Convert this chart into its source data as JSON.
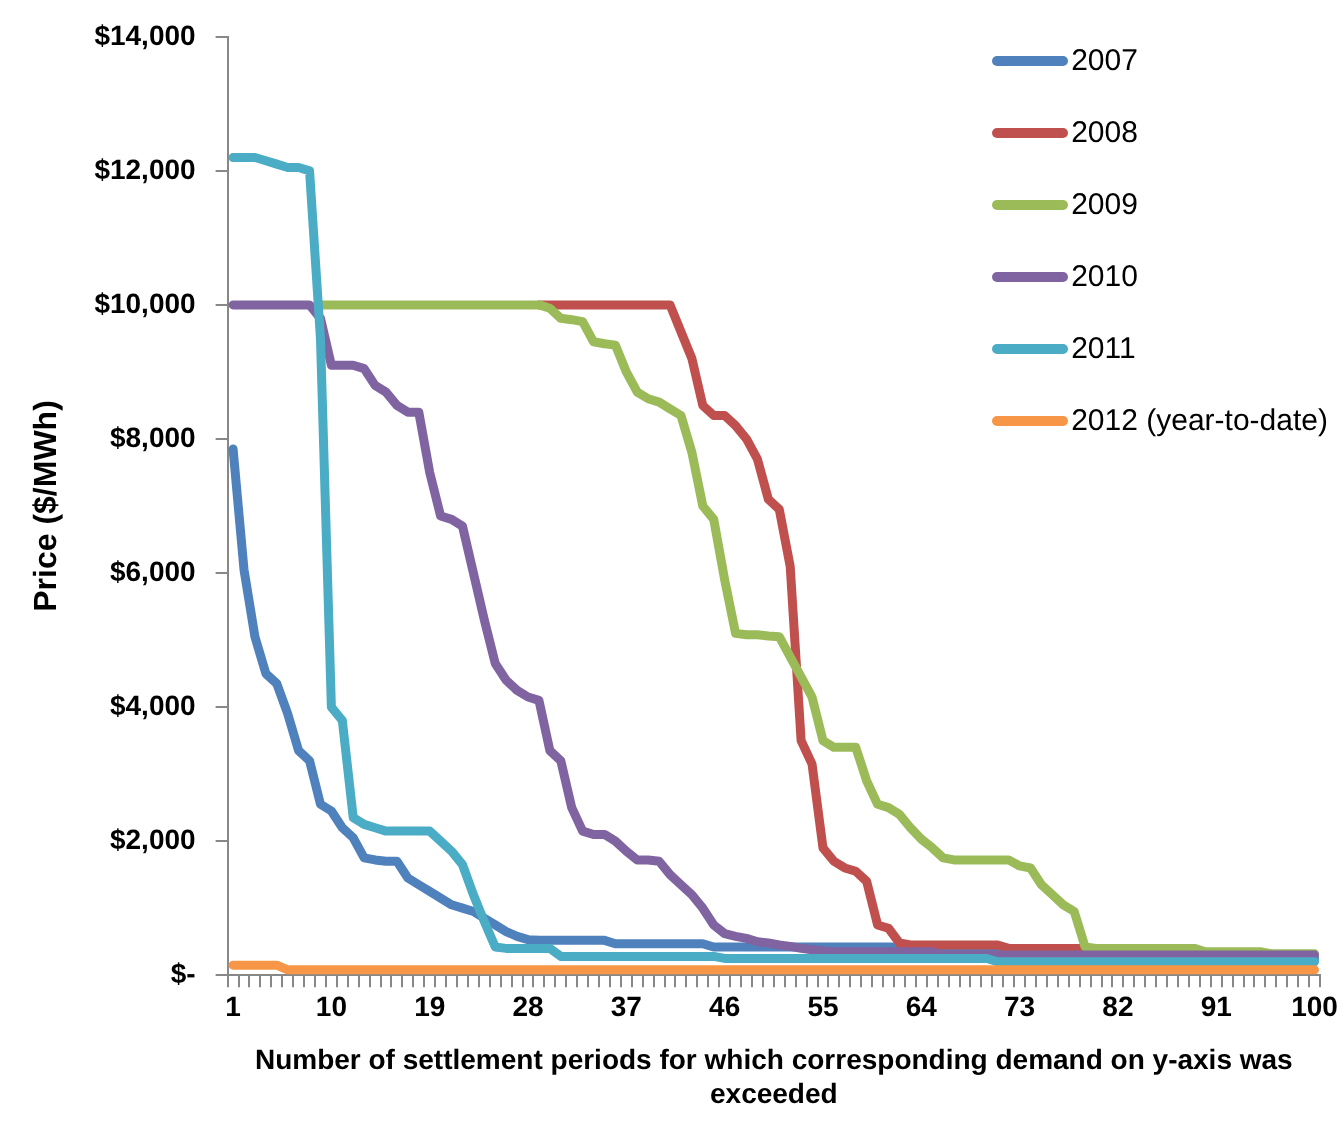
{
  "chart_data": {
    "type": "line",
    "xlabel": "Number of settlement periods for which corresponding demand on y-axis was exceeded",
    "ylabel": "Price ($/MWh)",
    "categories": [
      "1",
      null,
      null,
      null,
      null,
      null,
      null,
      null,
      null,
      "10",
      null,
      null,
      null,
      null,
      null,
      null,
      null,
      null,
      "19",
      null,
      null,
      null,
      null,
      null,
      null,
      null,
      null,
      "28",
      null,
      null,
      null,
      null,
      null,
      null,
      null,
      null,
      "37",
      null,
      null,
      null,
      null,
      null,
      null,
      null,
      null,
      "46",
      null,
      null,
      null,
      null,
      null,
      null,
      null,
      null,
      "55",
      null,
      null,
      null,
      null,
      null,
      null,
      null,
      null,
      "64",
      null,
      null,
      null,
      null,
      null,
      null,
      null,
      null,
      "73",
      null,
      null,
      null,
      null,
      null,
      null,
      null,
      null,
      "82",
      null,
      null,
      null,
      null,
      null,
      null,
      null,
      null,
      "91",
      null,
      null,
      null,
      null,
      null,
      null,
      null,
      null,
      "100"
    ],
    "ylim": [
      0,
      14000
    ],
    "yticks": [
      {
        "value": 0,
        "label": "$-"
      },
      {
        "value": 2000,
        "label": "$2,000"
      },
      {
        "value": 4000,
        "label": "$4,000"
      },
      {
        "value": 6000,
        "label": "$6,000"
      },
      {
        "value": 8000,
        "label": "$8,000"
      },
      {
        "value": 10000,
        "label": "$10,000"
      },
      {
        "value": 12000,
        "label": "$12,000"
      },
      {
        "value": 14000,
        "label": "$14,000"
      }
    ],
    "grid": false,
    "legend": "top right",
    "marker": "none",
    "line_style": "solid",
    "series": [
      {
        "name": "2007",
        "color": "#4f81bd",
        "values": [
          7850,
          6050,
          5050,
          4500,
          4350,
          3900,
          3350,
          3200,
          2550,
          2450,
          2200,
          2050,
          1750,
          1720,
          1700,
          1700,
          1450,
          1350,
          1250,
          1150,
          1050,
          1000,
          950,
          850,
          750,
          650,
          580,
          530,
          520,
          520,
          520,
          520,
          520,
          520,
          520,
          470,
          470,
          470,
          470,
          470,
          470,
          470,
          470,
          470,
          420,
          420,
          420,
          420,
          420,
          420,
          420,
          420,
          420,
          420,
          420,
          420,
          420,
          420,
          420,
          420,
          420,
          420,
          420,
          420,
          420,
          380,
          380,
          380,
          380,
          380,
          380,
          380,
          380,
          380,
          380,
          380,
          380,
          380,
          380,
          380,
          380,
          380,
          380,
          380,
          380,
          250,
          250,
          250,
          250,
          250,
          250,
          250,
          250,
          250,
          250,
          250,
          250,
          250,
          250,
          250
        ]
      },
      {
        "name": "2008",
        "color": "#c0504d",
        "values": [
          null,
          null,
          null,
          null,
          null,
          null,
          null,
          null,
          null,
          null,
          null,
          null,
          null,
          null,
          null,
          null,
          null,
          null,
          null,
          null,
          null,
          null,
          null,
          null,
          null,
          null,
          null,
          null,
          10000,
          10000,
          10000,
          10000,
          10000,
          10000,
          10000,
          10000,
          10000,
          10000,
          10000,
          10000,
          10000,
          9600,
          9200,
          8500,
          8350,
          8350,
          8200,
          8000,
          7700,
          7100,
          6950,
          6100,
          3500,
          3150,
          1900,
          1700,
          1600,
          1550,
          1400,
          750,
          700,
          480,
          450,
          450,
          450,
          450,
          450,
          450,
          450,
          450,
          450,
          400,
          400,
          400,
          400,
          400,
          400,
          400,
          400,
          350,
          null,
          null,
          null,
          null,
          null,
          null,
          null,
          null,
          null,
          null,
          null,
          null,
          null,
          null,
          null,
          null,
          null,
          null,
          null,
          null
        ]
      },
      {
        "name": "2009",
        "color": "#9bbb59",
        "values": [
          null,
          null,
          null,
          null,
          null,
          null,
          null,
          null,
          10000,
          10000,
          10000,
          10000,
          10000,
          10000,
          10000,
          10000,
          10000,
          10000,
          10000,
          10000,
          10000,
          10000,
          10000,
          10000,
          10000,
          10000,
          10000,
          10000,
          10000,
          9950,
          9800,
          9780,
          9750,
          9450,
          9420,
          9400,
          9000,
          8700,
          8600,
          8550,
          8450,
          8350,
          7800,
          7000,
          6800,
          5900,
          5100,
          5080,
          5080,
          5060,
          5050,
          4750,
          4450,
          4150,
          3500,
          3400,
          3400,
          3400,
          2900,
          2550,
          2500,
          2400,
          2200,
          2030,
          1900,
          1750,
          1720,
          1720,
          1720,
          1720,
          1720,
          1720,
          1630,
          1600,
          1350,
          1200,
          1050,
          950,
          420,
          400,
          400,
          400,
          400,
          400,
          400,
          400,
          400,
          400,
          400,
          350,
          350,
          350,
          350,
          350,
          350,
          320,
          320,
          320,
          320,
          320
        ]
      },
      {
        "name": "2010",
        "color": "#8064a2",
        "values": [
          10000,
          10000,
          10000,
          10000,
          10000,
          10000,
          10000,
          10000,
          9800,
          9100,
          9100,
          9100,
          9050,
          8800,
          8700,
          8500,
          8400,
          8400,
          7500,
          6850,
          6800,
          6700,
          6000,
          5300,
          4650,
          4400,
          4250,
          4150,
          4100,
          3350,
          3200,
          2500,
          2150,
          2100,
          2100,
          2000,
          1850,
          1720,
          1720,
          1700,
          1500,
          1350,
          1200,
          1000,
          750,
          620,
          580,
          550,
          500,
          480,
          450,
          430,
          400,
          380,
          360,
          350,
          350,
          350,
          350,
          350,
          350,
          350,
          350,
          350,
          350,
          300,
          300,
          300,
          300,
          300,
          300,
          300,
          300,
          300,
          300,
          300,
          300,
          300,
          300,
          300,
          300,
          300,
          300,
          300,
          300,
          300,
          300,
          300,
          300,
          300,
          300,
          300,
          300,
          300,
          300,
          300,
          300,
          300,
          300,
          300
        ]
      },
      {
        "name": "2011",
        "color": "#4bacc6",
        "values": [
          12200,
          12200,
          12200,
          12150,
          12100,
          12050,
          12050,
          12000,
          9500,
          4000,
          3800,
          2350,
          2250,
          2200,
          2150,
          2150,
          2150,
          2150,
          2150,
          2000,
          1850,
          1650,
          1200,
          800,
          420,
          400,
          400,
          400,
          400,
          400,
          280,
          280,
          280,
          280,
          280,
          280,
          280,
          280,
          280,
          280,
          280,
          280,
          280,
          280,
          280,
          250,
          250,
          250,
          250,
          250,
          250,
          250,
          250,
          250,
          250,
          250,
          250,
          250,
          250,
          250,
          250,
          250,
          250,
          250,
          250,
          250,
          250,
          250,
          250,
          250,
          200,
          200,
          200,
          200,
          200,
          200,
          200,
          200,
          200,
          200,
          200,
          200,
          200,
          200,
          200,
          200,
          200,
          200,
          200,
          200,
          200,
          200,
          200,
          200,
          200,
          200,
          200,
          200,
          200,
          200
        ]
      },
      {
        "name": "2012 (year-to-date)",
        "color": "#f79646",
        "values": [
          150,
          150,
          150,
          150,
          150,
          80,
          80,
          80,
          80,
          80,
          80,
          80,
          80,
          80,
          80,
          80,
          80,
          80,
          80,
          80,
          80,
          80,
          80,
          80,
          80,
          80,
          80,
          80,
          80,
          80,
          80,
          80,
          80,
          80,
          80,
          80,
          80,
          80,
          80,
          80,
          80,
          80,
          80,
          80,
          80,
          80,
          80,
          80,
          80,
          80,
          80,
          80,
          80,
          80,
          80,
          80,
          80,
          80,
          80,
          80,
          80,
          80,
          80,
          80,
          80,
          80,
          80,
          80,
          80,
          80,
          80,
          80,
          80,
          80,
          80,
          80,
          80,
          80,
          80,
          80,
          80,
          80,
          80,
          80,
          80,
          80,
          80,
          80,
          80,
          80,
          80,
          80,
          80,
          80,
          80,
          80,
          80,
          80,
          80,
          80
        ]
      }
    ]
  }
}
